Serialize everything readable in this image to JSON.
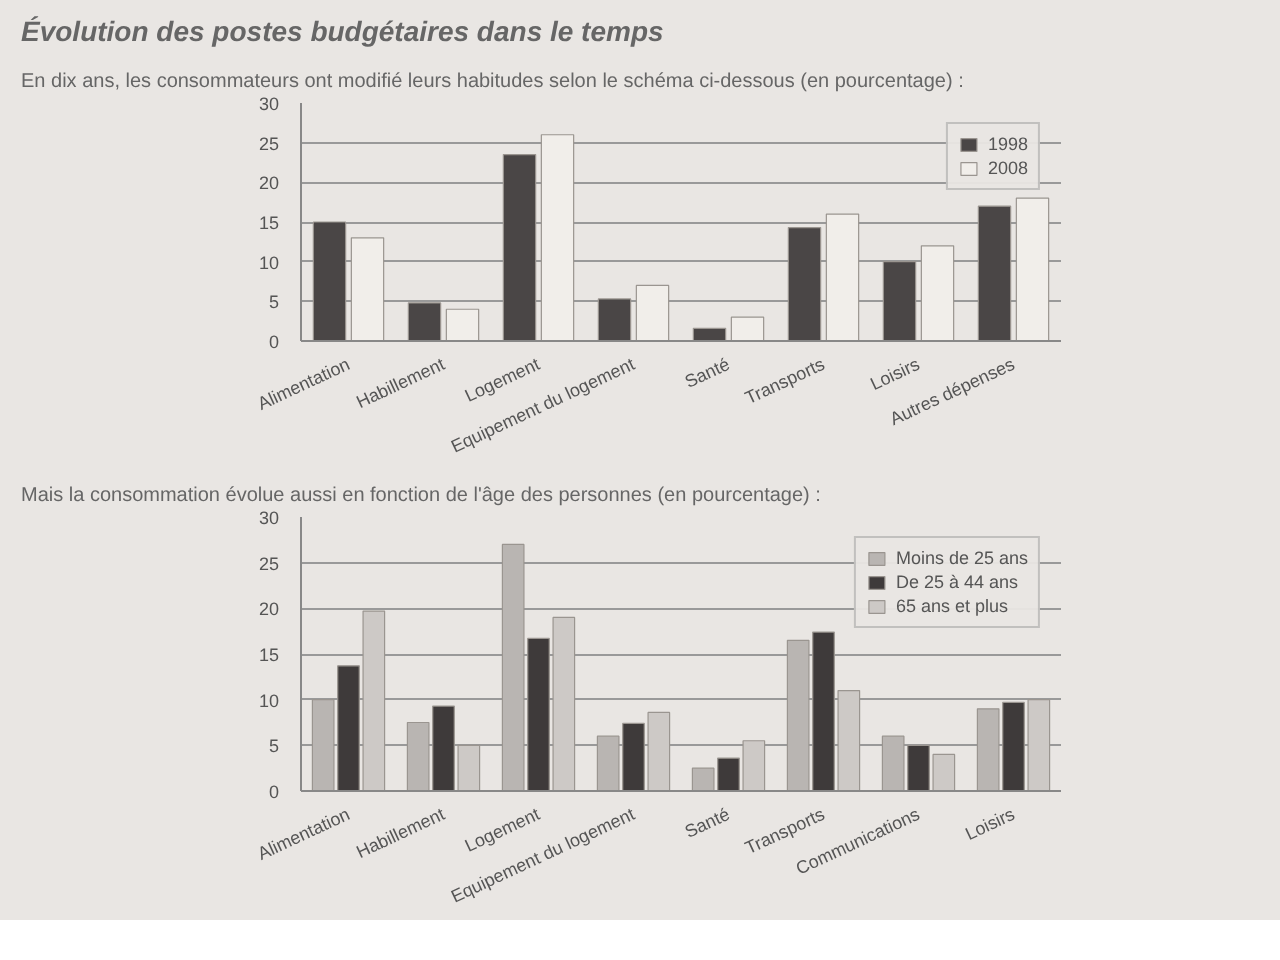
{
  "chart_data": [
    {
      "type": "bar",
      "title": "Évolution des postes budgétaires dans le temps",
      "subtitle": "En dix ans, les consommateurs ont modifié leurs habitudes selon le schéma ci-dessous (en pourcentage) :",
      "categories": [
        "Alimentation",
        "Habillement",
        "Logement",
        "Equipement du logement",
        "Santé",
        "Transports",
        "Loisirs",
        "Autres dépenses"
      ],
      "series": [
        {
          "name": "1998",
          "color": "#4a4646",
          "values": [
            15,
            4.8,
            23.5,
            5.3,
            1.6,
            14.3,
            10,
            17
          ]
        },
        {
          "name": "2008",
          "color": "#f1eeea",
          "values": [
            13,
            4,
            26,
            7,
            3,
            16,
            12,
            18
          ]
        }
      ],
      "ylim": [
        0,
        30
      ],
      "yticks": [
        0,
        5,
        10,
        15,
        20,
        25,
        30
      ],
      "grid": "y",
      "legend": "top right"
    },
    {
      "type": "bar",
      "title": "Mais la consommation évolue aussi en fonction de l'âge des personnes (en pourcentage) :",
      "categories": [
        "Alimentation",
        "Habillement",
        "Logement",
        "Equipement du logement",
        "Santé",
        "Transports",
        "Communications",
        "Loisirs"
      ],
      "series": [
        {
          "name": "Moins de 25 ans",
          "color": "#b9b5b2",
          "values": [
            10,
            7.5,
            27,
            6,
            2.5,
            16.5,
            6,
            9
          ]
        },
        {
          "name": "De 25 à 44 ans",
          "color": "#3e3a3a",
          "values": [
            13.7,
            9.3,
            16.7,
            7.4,
            3.6,
            17.4,
            5,
            9.7
          ]
        },
        {
          "name": "65 ans et plus",
          "color": "#cdc9c6",
          "values": [
            19.7,
            5,
            19,
            8.6,
            5.5,
            11,
            4,
            10
          ]
        }
      ],
      "ylim": [
        0,
        30
      ],
      "yticks": [
        0,
        5,
        10,
        15,
        20,
        25,
        30
      ],
      "grid": "y",
      "legend": "top right"
    }
  ]
}
